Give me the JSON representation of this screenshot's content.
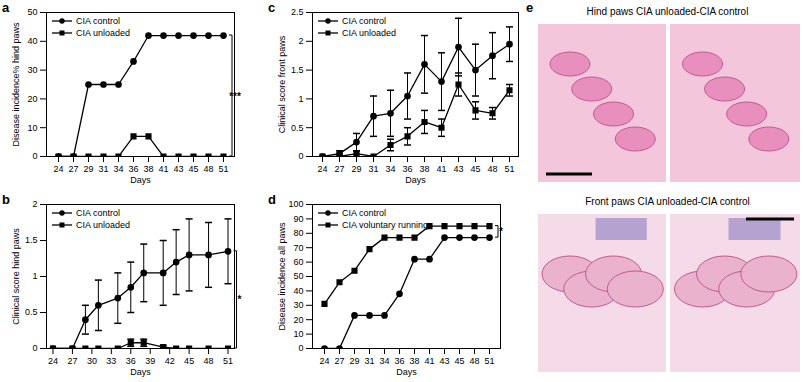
{
  "chart_data": [
    {
      "type": "line",
      "title": "a",
      "x_label": "Days",
      "y_label": "Disease incidence% hind paws",
      "categories": [
        24,
        27,
        29,
        31,
        34,
        36,
        38,
        41,
        43,
        45,
        48,
        51
      ],
      "series": [
        {
          "name": "CIA control",
          "color": "#000000",
          "marker": "circle",
          "values": [
            0,
            0,
            25,
            25,
            25,
            33,
            42,
            42,
            42,
            42,
            42,
            42
          ]
        },
        {
          "name": "CIA unloaded",
          "color": "#000000",
          "marker": "square",
          "values": [
            0,
            0,
            0,
            0,
            0,
            7,
            7,
            0,
            0,
            0,
            0,
            0
          ]
        }
      ],
      "ylim": [
        0,
        50
      ],
      "yticks": [
        0,
        10,
        20,
        30,
        40,
        50
      ],
      "legend": "top-left",
      "grid": false,
      "annotations": [
        {
          "text": "***"
        }
      ]
    },
    {
      "type": "line",
      "title": "b",
      "x_label": "Days",
      "y_label": "Clinical score hind paws",
      "x": [
        24,
        27,
        29,
        31,
        34,
        36,
        38,
        41,
        43,
        45,
        48,
        51
      ],
      "series": [
        {
          "name": "CIA control",
          "color": "#000000",
          "marker": "circle",
          "values": [
            0,
            0,
            0.4,
            0.6,
            0.7,
            0.85,
            1.05,
            1.05,
            1.2,
            1.3,
            1.3,
            1.35
          ],
          "errors": [
            0,
            0,
            0.2,
            0.35,
            0.35,
            0.35,
            0.4,
            0.45,
            0.45,
            0.5,
            0.45,
            0.45
          ]
        },
        {
          "name": "CIA unloaded",
          "color": "#000000",
          "marker": "square",
          "values": [
            0,
            0,
            0,
            0,
            0,
            0.08,
            0.08,
            0.02,
            0,
            0,
            0,
            0
          ],
          "errors": [
            0,
            0,
            0,
            0,
            0,
            0.05,
            0.05,
            0.02,
            0,
            0,
            0,
            0
          ]
        }
      ],
      "xlim": [
        23,
        52
      ],
      "xticks": [
        24,
        27,
        30,
        33,
        36,
        39,
        42,
        45,
        48,
        51
      ],
      "ylim": [
        0,
        2
      ],
      "yticks": [
        0,
        0.5,
        1,
        1.5,
        2
      ],
      "legend": "top-left",
      "grid": false,
      "annotations": [
        {
          "text": "*"
        }
      ]
    },
    {
      "type": "line",
      "title": "c",
      "x_label": "Days",
      "y_label": "Clinical score front paws",
      "categories": [
        24,
        27,
        29,
        31,
        34,
        36,
        38,
        41,
        43,
        45,
        48,
        51
      ],
      "series": [
        {
          "name": "CIA control",
          "color": "#000000",
          "marker": "circle",
          "values": [
            0,
            0.05,
            0.25,
            0.7,
            0.75,
            1.05,
            1.6,
            1.3,
            1.9,
            1.5,
            1.75,
            1.95
          ],
          "errors": [
            0,
            0.05,
            0.15,
            0.35,
            0.4,
            0.4,
            0.5,
            0.5,
            0.5,
            0.45,
            0.4,
            0.3
          ]
        },
        {
          "name": "CIA unloaded",
          "color": "#000000",
          "marker": "square",
          "values": [
            0,
            0,
            0.05,
            0,
            0.2,
            0.35,
            0.6,
            0.5,
            1.25,
            0.8,
            0.75,
            1.15
          ],
          "errors": [
            0,
            0,
            0.05,
            0,
            0.1,
            0.15,
            0.2,
            0.15,
            0.2,
            0.15,
            0.1,
            0.1
          ]
        }
      ],
      "ylim": [
        0,
        2.5
      ],
      "yticks": [
        0,
        0.5,
        1,
        1.5,
        2,
        2.5
      ],
      "legend": "top-left",
      "grid": false
    },
    {
      "type": "line",
      "title": "d",
      "x_label": "Days",
      "y_label": "Disease incidence all paws",
      "categories": [
        24,
        27,
        29,
        31,
        34,
        36,
        38,
        41,
        43,
        45,
        48,
        51
      ],
      "series": [
        {
          "name": "CIA control",
          "color": "#000000",
          "marker": "circle",
          "values": [
            0,
            0,
            23,
            23,
            23,
            38,
            62,
            62,
            77,
            77,
            77,
            77
          ]
        },
        {
          "name": "CIA voluntary running",
          "color": "#000000",
          "marker": "square",
          "values": [
            31,
            46,
            54,
            69,
            77,
            77,
            77,
            85,
            85,
            85,
            85,
            85
          ]
        }
      ],
      "ylim": [
        0,
        100
      ],
      "yticks": [
        0,
        10,
        20,
        30,
        40,
        50,
        60,
        70,
        80,
        90,
        100
      ],
      "legend": "top-left",
      "grid": false,
      "annotations": [
        {
          "text": "*"
        }
      ]
    }
  ],
  "images": {
    "title": "e",
    "panels": [
      {
        "title": "Hind paws CIA unloaded-CIA control"
      },
      {
        "title": "Front paws CIA unloaded-CIA control"
      }
    ]
  }
}
